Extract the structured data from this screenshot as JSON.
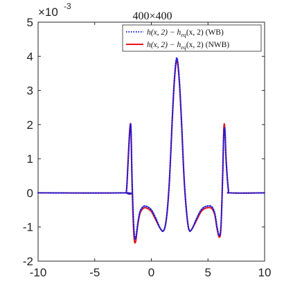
{
  "chart_data": {
    "type": "line",
    "title": "400×400",
    "xlabel": "",
    "ylabel": "",
    "xlim": [
      -10,
      10
    ],
    "ylim": [
      -2,
      5
    ],
    "y_multiplier_label": "×10",
    "y_multiplier_exponent": "-3",
    "xticks": [
      -10,
      -5,
      0,
      5,
      10
    ],
    "xtick_labels": [
      "-10",
      "-5",
      "0",
      "5",
      "10"
    ],
    "yticks": [
      -2,
      -1,
      0,
      1,
      2,
      3,
      4,
      5
    ],
    "ytick_labels": [
      "-2",
      "-1",
      "0",
      "1",
      "2",
      "3",
      "4",
      "5"
    ],
    "grid": false,
    "legend_position": "top-right",
    "series": [
      {
        "name": "h(x,2) − h_eq(x,2) (WB)",
        "color": "#1a1adb",
        "style": "dotted",
        "x": [
          -10,
          -2.4,
          -2.2,
          -2.05,
          -1.9,
          -1.8,
          -1.7,
          -1.55,
          -1.4,
          -1.2,
          -1.0,
          -0.7,
          -0.4,
          0.0,
          0.4,
          0.8,
          1.1,
          1.35,
          1.6,
          1.85,
          2.05,
          2.25,
          2.45,
          2.65,
          2.9,
          3.15,
          3.35,
          3.6,
          4.0,
          4.4,
          4.8,
          5.3,
          5.6,
          5.8,
          6.0,
          6.15,
          6.3,
          6.4,
          6.5,
          6.6,
          6.8,
          7.0,
          10
        ],
        "values": [
          0,
          0,
          0.05,
          0.9,
          1.8,
          1.9,
          0.4,
          -1.0,
          -1.35,
          -0.9,
          -0.55,
          -0.4,
          -0.4,
          -0.5,
          -0.75,
          -1.05,
          -1.1,
          -0.7,
          0.4,
          2.2,
          3.4,
          3.95,
          3.4,
          2.2,
          0.4,
          -0.7,
          -1.1,
          -1.05,
          -0.75,
          -0.5,
          -0.4,
          -0.4,
          -0.6,
          -1.0,
          -1.25,
          -0.95,
          0.5,
          1.75,
          1.8,
          1.0,
          0.1,
          0,
          0
        ]
      },
      {
        "name": "h(x,2) − h_eq(x,2) (NWB)",
        "color": "#e8141c",
        "style": "solid",
        "x": [
          -10,
          -2.4,
          -2.2,
          -2.05,
          -1.9,
          -1.8,
          -1.7,
          -1.55,
          -1.4,
          -1.2,
          -1.0,
          -0.7,
          -0.4,
          0.0,
          0.4,
          0.8,
          1.1,
          1.35,
          1.6,
          1.85,
          2.05,
          2.25,
          2.45,
          2.65,
          2.9,
          3.15,
          3.35,
          3.6,
          4.0,
          4.4,
          4.8,
          5.3,
          5.6,
          5.8,
          6.0,
          6.15,
          6.3,
          6.4,
          6.5,
          6.6,
          6.8,
          7.0,
          10
        ],
        "values": [
          0,
          0,
          0.05,
          1.0,
          1.9,
          1.85,
          0.2,
          -1.2,
          -1.45,
          -0.95,
          -0.6,
          -0.45,
          -0.45,
          -0.55,
          -0.8,
          -1.05,
          -1.1,
          -0.7,
          0.35,
          2.15,
          3.35,
          3.88,
          3.35,
          2.15,
          0.35,
          -0.7,
          -1.1,
          -1.05,
          -0.8,
          -0.55,
          -0.45,
          -0.45,
          -0.65,
          -1.05,
          -1.3,
          -1.0,
          0.55,
          1.9,
          1.85,
          0.95,
          0.1,
          0,
          0
        ]
      }
    ]
  },
  "legend": {
    "entries": [
      {
        "prefix": "h(x, 2) − h",
        "sub": "eq",
        "suffix": "(x, 2) (WB)"
      },
      {
        "prefix": "h(x, 2) − h",
        "sub": "eq",
        "suffix": "(x, 2) (NWB)"
      }
    ]
  }
}
